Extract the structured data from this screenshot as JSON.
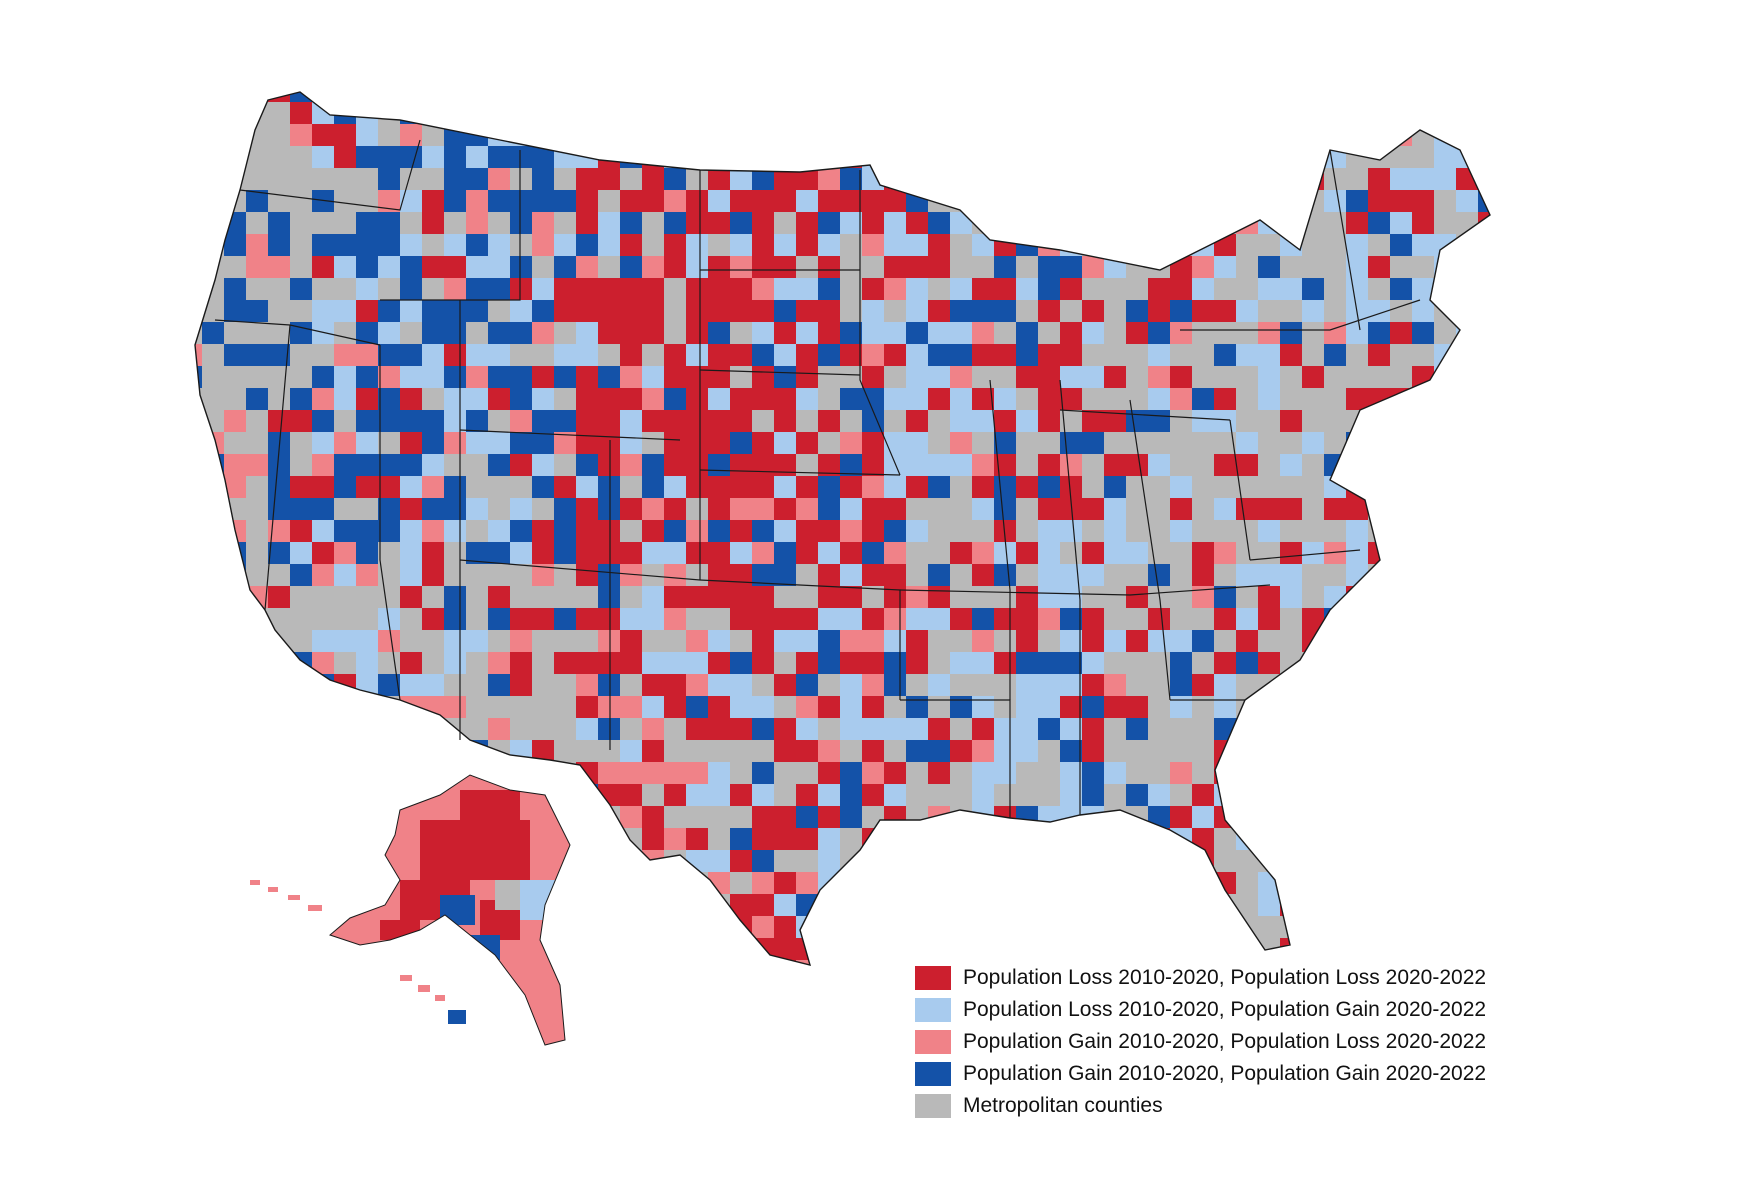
{
  "colors": {
    "loss_loss": "#cc1f2e",
    "loss_gain": "#a8cbee",
    "gain_loss": "#f08288",
    "gain_gain": "#1452a8",
    "metro": "#b9b9b9",
    "border": "#1a1a1a"
  },
  "legend": {
    "items": [
      {
        "key": "loss_loss",
        "label": "Population Loss 2010-2020, Population Loss 2020-2022"
      },
      {
        "key": "loss_gain",
        "label": "Population Loss 2010-2020, Population Gain 2020-2022"
      },
      {
        "key": "gain_loss",
        "label": "Population Gain 2010-2020, Population Loss 2020-2022"
      },
      {
        "key": "gain_gain",
        "label": "Population Gain 2010-2020, Population Gain 2020-2022"
      },
      {
        "key": "metro",
        "label": "Metropolitan counties"
      }
    ]
  }
}
